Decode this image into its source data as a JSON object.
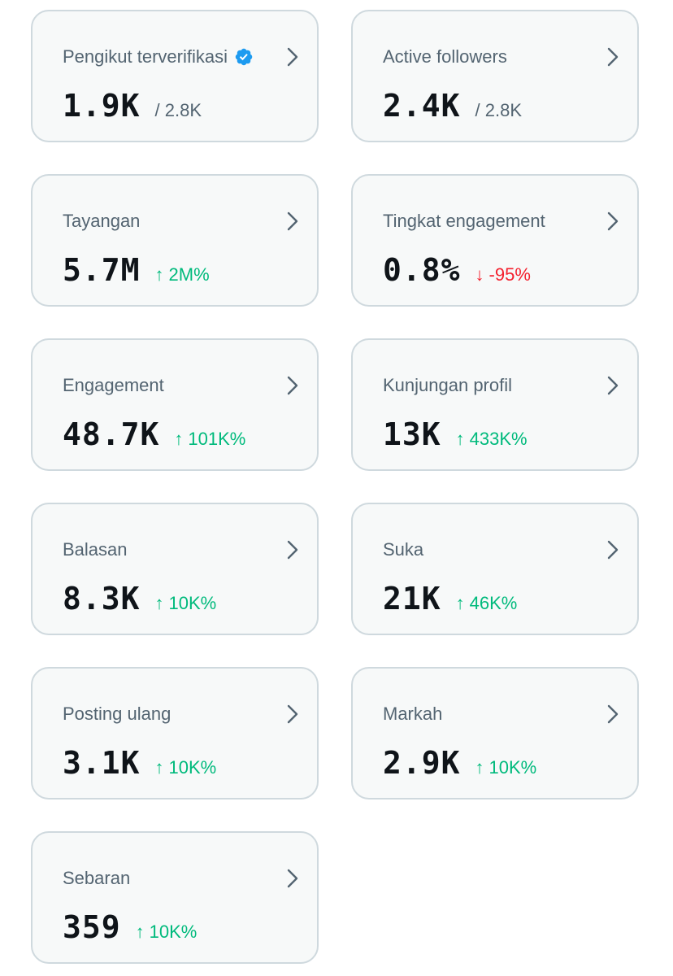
{
  "colors": {
    "card_bg": "#f7f9f9",
    "card_border": "#cfd9de",
    "label": "#536471",
    "value": "#0f1419",
    "positive": "#00ba7c",
    "negative": "#f4212e",
    "verified_badge": "#1d9bf0"
  },
  "cards": [
    {
      "label": "Pengikut terverifikasi",
      "value": "1.9K",
      "sub": "/ 2.8K",
      "verified": true,
      "icon": "chevron-right-icon"
    },
    {
      "label": "Active followers",
      "value": "2.4K",
      "sub": "/ 2.8K",
      "icon": "chevron-right-icon"
    },
    {
      "label": "Tayangan",
      "value": "5.7M",
      "delta": "2M%",
      "direction": "up",
      "icon": "chevron-right-icon"
    },
    {
      "label": "Tingkat engagement",
      "value": "0.8%",
      "delta": "-95%",
      "direction": "down",
      "icon": "chevron-right-icon"
    },
    {
      "label": "Engagement",
      "value": "48.7K",
      "delta": "101K%",
      "direction": "up",
      "icon": "chevron-right-icon"
    },
    {
      "label": "Kunjungan profil",
      "value": "13K",
      "delta": "433K%",
      "direction": "up",
      "icon": "chevron-right-icon"
    },
    {
      "label": "Balasan",
      "value": "8.3K",
      "delta": "10K%",
      "direction": "up",
      "icon": "chevron-right-icon"
    },
    {
      "label": "Suka",
      "value": "21K",
      "delta": "46K%",
      "direction": "up",
      "icon": "chevron-right-icon"
    },
    {
      "label": "Posting ulang",
      "value": "3.1K",
      "delta": "10K%",
      "direction": "up",
      "icon": "chevron-right-icon"
    },
    {
      "label": "Markah",
      "value": "2.9K",
      "delta": "10K%",
      "direction": "up",
      "icon": "chevron-right-icon"
    },
    {
      "label": "Sebaran",
      "value": "359",
      "delta": "10K%",
      "direction": "up",
      "icon": "chevron-right-icon"
    }
  ],
  "arrows": {
    "up": "↑",
    "down": "↓"
  }
}
